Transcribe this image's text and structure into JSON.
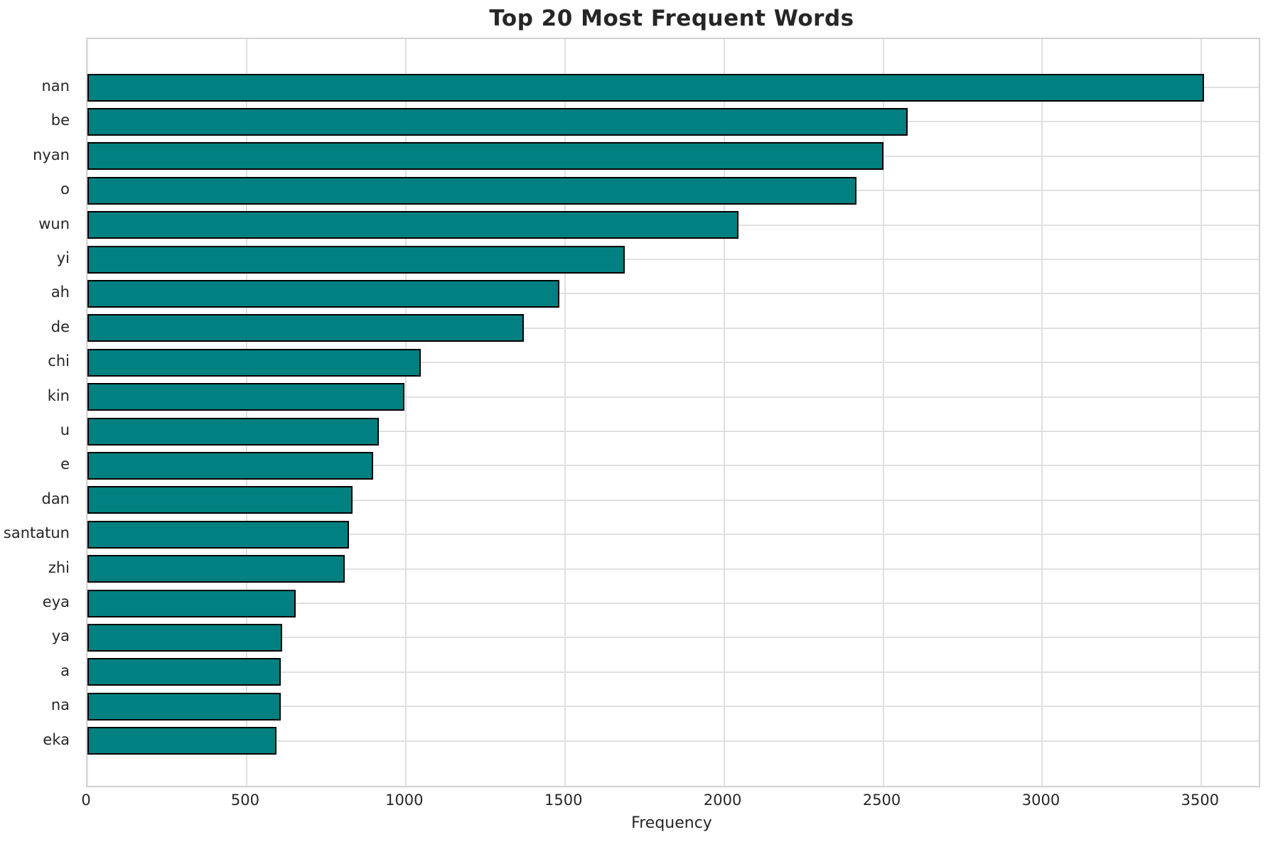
{
  "title": "Top 20 Most Frequent Words",
  "chart_data": {
    "type": "bar",
    "orientation": "horizontal",
    "title": "Top 20 Most Frequent Words",
    "categories": [
      "nan",
      "be",
      "nyan",
      "o",
      "wun",
      "yi",
      "ah",
      "de",
      "chi",
      "kin",
      "u",
      "e",
      "dan",
      "santatun",
      "zhi",
      "eya",
      "ya",
      "a",
      "na",
      "eka"
    ],
    "values": [
      3508,
      2578,
      2500,
      2417,
      2045,
      1688,
      1483,
      1371,
      1047,
      997,
      915,
      898,
      833,
      822,
      809,
      655,
      612,
      608,
      608,
      593
    ],
    "xlabel": "Frequency",
    "ylabel": "",
    "xlim": [
      0,
      3680
    ],
    "xticks": [
      0,
      500,
      1000,
      1500,
      2000,
      2500,
      3000,
      3500
    ],
    "grid": true,
    "legend": false,
    "bar_color": "#008080",
    "bar_edge_color": "#000000",
    "grid_color": "#e0e0e0"
  }
}
